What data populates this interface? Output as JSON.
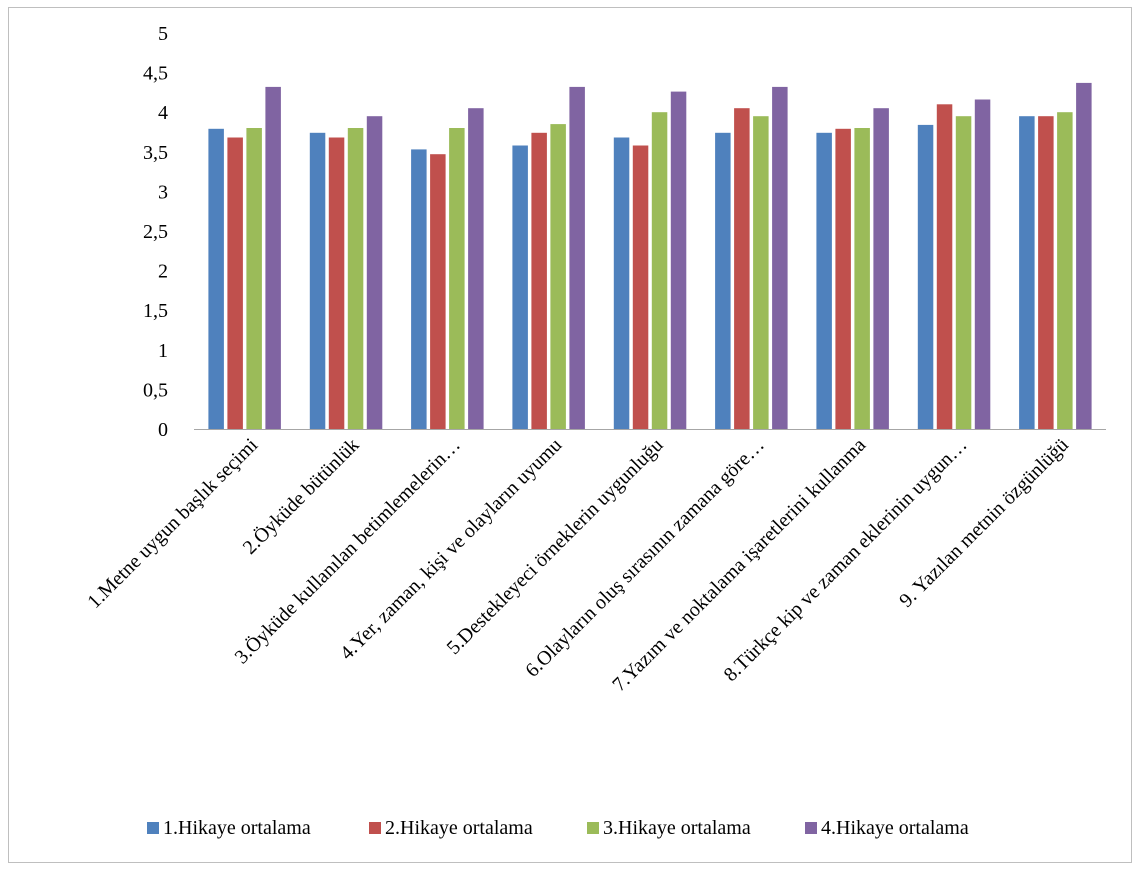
{
  "chart_data": {
    "type": "bar",
    "title": "",
    "xlabel": "",
    "ylabel": "",
    "ylim": [
      0,
      5
    ],
    "yticks": [
      "0",
      "0,5",
      "1",
      "1,5",
      "2",
      "2,5",
      "3",
      "3,5",
      "4",
      "4,5",
      "5"
    ],
    "grid": false,
    "legend_position": "bottom",
    "categories": [
      "1.Metne uygun başlık seçimi",
      "2.Öyküde bütünlük",
      "3.Öyküde kullanılan betimlemelerin…",
      "4.Yer, zaman, kişi ve olayların uyumu",
      "5.Destekleyeci örneklerin uygunluğu",
      "6.Olayların oluş sırasının zamana göre…",
      "7.Yazım ve noktalama işaretlerini kullanma",
      "8.Türkçe kip ve zaman eklerinin uygun…",
      "9. Yazılan metnin özgünlüğü"
    ],
    "series": [
      {
        "name": "1.Hikaye ortalama",
        "color": "#4f81bd",
        "values": [
          3.79,
          3.74,
          3.53,
          3.58,
          3.68,
          3.74,
          3.74,
          3.84,
          3.95
        ]
      },
      {
        "name": "2.Hikaye ortalama",
        "color": "#c0504d",
        "values": [
          3.68,
          3.68,
          3.47,
          3.74,
          3.58,
          4.05,
          3.79,
          4.1,
          3.95
        ]
      },
      {
        "name": "3.Hikaye ortalama",
        "color": "#9bbb59",
        "values": [
          3.8,
          3.8,
          3.8,
          3.85,
          4.0,
          3.95,
          3.8,
          3.95,
          4.0
        ]
      },
      {
        "name": "4.Hikaye ortalama",
        "color": "#8064a2",
        "values": [
          4.32,
          3.95,
          4.05,
          4.32,
          4.26,
          4.32,
          4.05,
          4.16,
          4.37
        ]
      }
    ]
  }
}
